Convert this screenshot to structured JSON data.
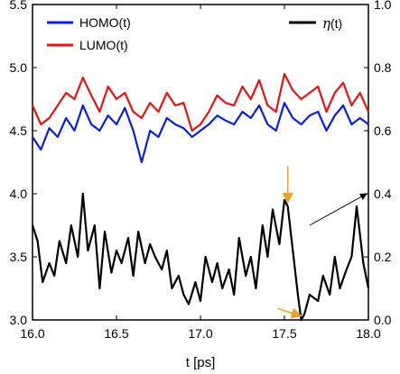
{
  "chart_data": {
    "type": "line",
    "xlabel": "t [ps]",
    "xlim": [
      16.0,
      18.0
    ],
    "ylim_left": [
      3.0,
      5.5
    ],
    "ylim_right": [
      0.0,
      1.0
    ],
    "x_ticks": [
      "16.0",
      "16.5",
      "17.0",
      "17.5",
      "18.0"
    ],
    "y_ticks_left": [
      "3.0",
      "3.5",
      "4.0",
      "4.5",
      "5.0",
      "5.5"
    ],
    "y_ticks_right": [
      "0.0",
      "0.2",
      "0.4",
      "0.6",
      "0.8",
      "1.0"
    ],
    "grid": false,
    "legend": {
      "left": [
        "HOMO(t)",
        "LUMO(t)"
      ],
      "right_symbol": "η",
      "right_arg": "(t)"
    },
    "colors": {
      "homo": "#0a1fe0",
      "lumo": "#e61414",
      "eta": "#000000",
      "annotation_arrow": "#f0a020"
    },
    "series": [
      {
        "name": "HOMO(t)",
        "axis": "left",
        "x": [
          16.0,
          16.05,
          16.1,
          16.15,
          16.2,
          16.25,
          16.3,
          16.35,
          16.4,
          16.45,
          16.5,
          16.55,
          16.6,
          16.65,
          16.7,
          16.75,
          16.8,
          16.85,
          16.9,
          16.95,
          17.0,
          17.05,
          17.1,
          17.15,
          17.2,
          17.25,
          17.3,
          17.35,
          17.4,
          17.45,
          17.5,
          17.55,
          17.6,
          17.65,
          17.7,
          17.75,
          17.8,
          17.85,
          17.9,
          17.95,
          18.0
        ],
        "y": [
          4.45,
          4.35,
          4.52,
          4.45,
          4.6,
          4.5,
          4.7,
          4.55,
          4.5,
          4.62,
          4.55,
          4.68,
          4.5,
          4.25,
          4.5,
          4.45,
          4.6,
          4.55,
          4.52,
          4.45,
          4.5,
          4.55,
          4.62,
          4.58,
          4.55,
          4.65,
          4.6,
          4.7,
          4.55,
          4.5,
          4.72,
          4.6,
          4.55,
          4.62,
          4.65,
          4.5,
          4.62,
          4.7,
          4.55,
          4.6,
          4.55
        ]
      },
      {
        "name": "LUMO(t)",
        "axis": "left",
        "x": [
          16.0,
          16.05,
          16.1,
          16.15,
          16.2,
          16.25,
          16.3,
          16.35,
          16.4,
          16.45,
          16.5,
          16.55,
          16.6,
          16.65,
          16.7,
          16.75,
          16.8,
          16.85,
          16.9,
          16.95,
          17.0,
          17.05,
          17.1,
          17.15,
          17.2,
          17.25,
          17.3,
          17.35,
          17.4,
          17.45,
          17.5,
          17.55,
          17.6,
          17.65,
          17.7,
          17.75,
          17.8,
          17.85,
          17.9,
          17.95,
          18.0
        ],
        "y": [
          4.7,
          4.55,
          4.6,
          4.7,
          4.8,
          4.75,
          4.92,
          4.78,
          4.65,
          4.85,
          4.75,
          4.8,
          4.65,
          4.6,
          4.72,
          4.65,
          4.8,
          4.7,
          4.72,
          4.5,
          4.55,
          4.65,
          4.78,
          4.72,
          4.7,
          4.85,
          4.75,
          4.9,
          4.7,
          4.65,
          4.95,
          4.82,
          4.75,
          4.8,
          4.85,
          4.65,
          4.8,
          4.88,
          4.7,
          4.8,
          4.65
        ]
      },
      {
        "name": "η(t)",
        "axis": "right",
        "x": [
          16.0,
          16.03,
          16.06,
          16.1,
          16.13,
          16.16,
          16.2,
          16.23,
          16.27,
          16.3,
          16.33,
          16.37,
          16.4,
          16.43,
          16.47,
          16.5,
          16.53,
          16.57,
          16.6,
          16.63,
          16.67,
          16.7,
          16.73,
          16.77,
          16.8,
          16.83,
          16.87,
          16.9,
          16.93,
          16.97,
          17.0,
          17.03,
          17.07,
          17.1,
          17.13,
          17.17,
          17.2,
          17.23,
          17.27,
          17.3,
          17.33,
          17.37,
          17.4,
          17.43,
          17.47,
          17.5,
          17.52,
          17.55,
          17.58,
          17.6,
          17.62,
          17.65,
          17.7,
          17.73,
          17.77,
          17.8,
          17.83,
          17.87,
          17.9,
          17.93,
          17.97,
          18.0
        ],
        "y": [
          0.3,
          0.25,
          0.12,
          0.18,
          0.14,
          0.25,
          0.18,
          0.3,
          0.2,
          0.4,
          0.22,
          0.3,
          0.1,
          0.28,
          0.15,
          0.22,
          0.18,
          0.26,
          0.14,
          0.28,
          0.18,
          0.24,
          0.2,
          0.16,
          0.22,
          0.1,
          0.14,
          0.08,
          0.05,
          0.12,
          0.06,
          0.2,
          0.12,
          0.18,
          0.1,
          0.16,
          0.08,
          0.26,
          0.14,
          0.2,
          0.1,
          0.3,
          0.2,
          0.35,
          0.24,
          0.38,
          0.36,
          0.22,
          0.08,
          0.0,
          0.02,
          0.08,
          0.06,
          0.14,
          0.08,
          0.2,
          0.1,
          0.16,
          0.2,
          0.36,
          0.18,
          0.1
        ]
      }
    ],
    "annotations": [
      {
        "type": "arrow",
        "color": "orange",
        "from": [
          17.52,
          3.9
        ],
        "to": [
          17.52,
          3.93
        ]
      },
      {
        "type": "arrow",
        "color": "orange",
        "from": [
          17.48,
          3.08
        ],
        "to": [
          17.6,
          3.04
        ]
      },
      {
        "type": "arrow",
        "color": "black",
        "from": [
          17.65,
          3.75
        ],
        "to": [
          18.0,
          0.4
        ]
      }
    ]
  }
}
